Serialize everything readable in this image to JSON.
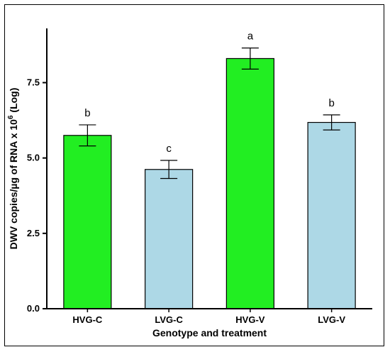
{
  "chart_data": {
    "type": "bar",
    "categories": [
      "HVG-C",
      "LVG-C",
      "HVG-V",
      "LVG-V"
    ],
    "values": [
      5.75,
      4.62,
      8.3,
      6.18
    ],
    "errors": [
      0.35,
      0.3,
      0.35,
      0.25
    ],
    "significance": [
      "b",
      "c",
      "a",
      "b"
    ],
    "bar_colors": [
      "#22ee22",
      "#add8e6",
      "#22ee22",
      "#add8e6"
    ],
    "xlabel": "Genotype and treatment",
    "ylabel": "DWV copies/µg of RNA x 10",
    "ylabel_superscript": "6",
    "ylabel_suffix": " (Log)",
    "ylim": [
      0,
      9.3
    ],
    "yticks": [
      "0.0",
      "2.5",
      "5.0",
      "7.5"
    ],
    "ytick_values": [
      0,
      2.5,
      5.0,
      7.5
    ],
    "grid": false,
    "legend": "none"
  }
}
